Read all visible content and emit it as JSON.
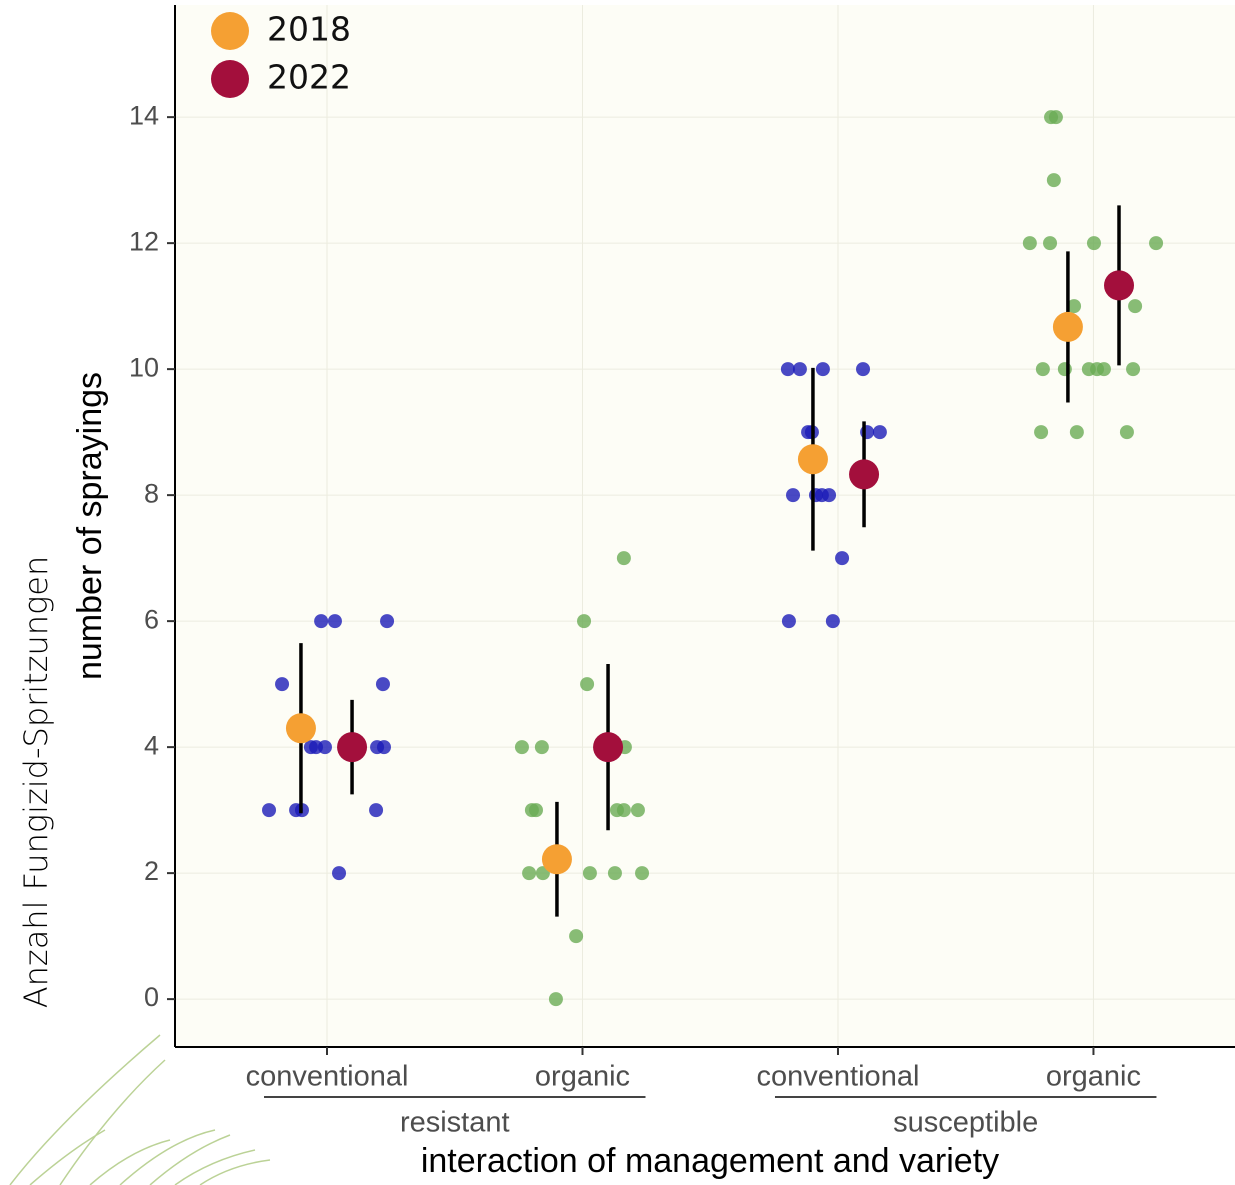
{
  "chart_data": {
    "type": "scatter",
    "y_title": "number of sprayings",
    "y_title_secondary": "Anzahl Fungizid-Spritzungen",
    "x_title": "interaction of management and variety",
    "x_groups": [
      "resistant",
      "susceptible"
    ],
    "xlim": [
      0.405,
      4.554
    ],
    "xticks": [
      {
        "value": 1,
        "label": "conventional"
      },
      {
        "value": 2,
        "label": "organic"
      },
      {
        "value": 3,
        "label": "conventional"
      },
      {
        "value": 4,
        "label": "organic"
      }
    ],
    "ylim": [
      -0.76,
      15.78
    ],
    "yticks": [
      0,
      2,
      4,
      6,
      8,
      10,
      12,
      14
    ],
    "grid": true,
    "legend": "top-left",
    "points": [
      {
        "color": "#1c1cb8",
        "x": [
          0.773,
          0.824,
          0.879,
          0.902,
          0.937,
          0.957,
          0.977,
          0.992,
          1.031,
          1.047,
          1.192,
          1.196,
          1.219,
          1.223,
          1.235
        ],
        "values": [
          3,
          5,
          3,
          3,
          4,
          4,
          6,
          4,
          6,
          2,
          3,
          4,
          5,
          4,
          6
        ]
      },
      {
        "color": "#6aab55",
        "x": [
          1.763,
          1.841,
          1.802,
          1.818,
          1.791,
          1.845,
          1.896,
          1.975,
          2.006,
          2.018,
          2.029,
          2.127,
          2.162,
          2.166,
          2.135,
          2.162,
          2.217,
          2.233
        ],
        "values": [
          4,
          4,
          3,
          3,
          2,
          2,
          0,
          1,
          6,
          5,
          2,
          2,
          7,
          4,
          3,
          3,
          3,
          2
        ]
      },
      {
        "color": "#1c1cb8",
        "x": [
          2.808,
          2.804,
          2.851,
          2.941,
          2.883,
          2.898,
          2.824,
          2.914,
          2.937,
          2.965,
          3.016,
          2.98,
          3.098,
          3.114,
          3.164
        ],
        "values": [
          6,
          10,
          10,
          10,
          9,
          9,
          8,
          8,
          8,
          8,
          7,
          6,
          10,
          9,
          9
        ]
      },
      {
        "color": "#6aab55",
        "x": [
          3.834,
          3.853,
          3.845,
          3.751,
          3.83,
          4.002,
          4.245,
          3.924,
          4.163,
          3.802,
          3.888,
          3.982,
          4.014,
          4.041,
          4.155,
          3.795,
          3.935,
          4.131
        ],
        "values": [
          14,
          14,
          13,
          12,
          12,
          12,
          12,
          11,
          11,
          10,
          10,
          10,
          10,
          10,
          10,
          9,
          9,
          9
        ]
      }
    ],
    "series": [
      {
        "name": "2018",
        "color": "#f5a033",
        "x": [
          0.898,
          1.9,
          2.902,
          3.9
        ],
        "values": [
          4.3,
          2.22,
          8.57,
          10.67
        ],
        "errors": [
          1.35,
          0.91,
          1.45,
          1.2
        ]
      },
      {
        "name": "2022",
        "color": "#a30f3c",
        "x": [
          1.098,
          2.1,
          3.102,
          4.1
        ],
        "values": [
          4.0,
          4.0,
          8.33,
          11.33
        ],
        "errors": [
          0.75,
          1.32,
          0.84,
          1.27
        ]
      }
    ]
  }
}
